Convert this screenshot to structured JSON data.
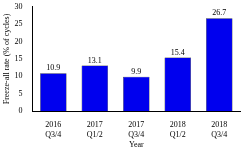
{
  "chart_data": {
    "type": "bar",
    "x_label": "Year",
    "y_label": "Freeze-all rate (% of cycles)",
    "categories": [
      [
        "2016",
        "Q3/4"
      ],
      [
        "2017",
        "Q1/2"
      ],
      [
        "2017",
        "Q3/4"
      ],
      [
        "2018",
        "Q1/2"
      ],
      [
        "2018",
        "Q3/4"
      ]
    ],
    "values": [
      10.9,
      13.1,
      9.9,
      15.4,
      26.7
    ],
    "color": "#0000ee",
    "ylim": [
      0,
      30
    ],
    "yticks": [
      0,
      5,
      10,
      15,
      20,
      25,
      30
    ],
    "grid": false,
    "data_labels": true
  }
}
